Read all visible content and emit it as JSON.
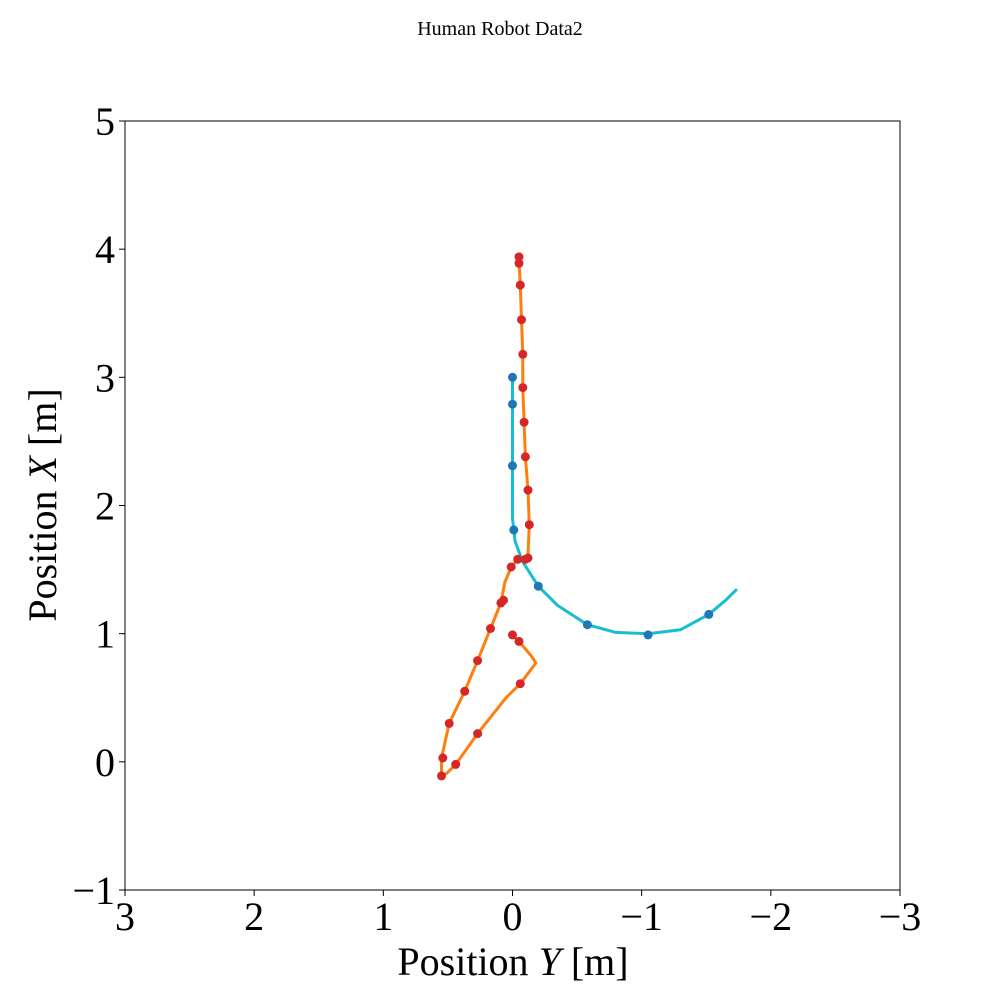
{
  "chart_data": {
    "type": "line",
    "title": "Human Robot Data2",
    "xlabel": {
      "prefix": "Position ",
      "var": "Y",
      "suffix": " [m]"
    },
    "ylabel": {
      "prefix": "Position ",
      "var": "X",
      "suffix": " [m]"
    },
    "xlim": [
      3,
      -3
    ],
    "ylim": [
      -1,
      5
    ],
    "x_inverted": true,
    "grid": false,
    "xticks": [
      3,
      2,
      1,
      0,
      -1,
      -2,
      -3
    ],
    "yticks": [
      -1,
      0,
      1,
      2,
      3,
      4,
      5
    ],
    "xtick_labels": [
      "3",
      "2",
      "1",
      "0",
      "−1",
      "−2",
      "−3"
    ],
    "ytick_labels": [
      "−1",
      "0",
      "1",
      "2",
      "3",
      "4",
      "5"
    ],
    "colors": {
      "robot_line": "#17becf",
      "robot_marker": "#1f77b4",
      "human_line": "#ff7f0e",
      "human_marker": "#d62728"
    },
    "series": [
      {
        "role": "robot",
        "line": [
          [
            0.0,
            3.0
          ],
          [
            0.0,
            2.5
          ],
          [
            0.0,
            2.0
          ],
          [
            0.0,
            1.9
          ],
          [
            -0.02,
            1.72
          ],
          [
            -0.08,
            1.56
          ],
          [
            -0.2,
            1.37
          ],
          [
            -0.35,
            1.22
          ],
          [
            -0.58,
            1.07
          ],
          [
            -0.8,
            1.01
          ],
          [
            -1.05,
            1.0
          ],
          [
            -1.3,
            1.03
          ],
          [
            -1.52,
            1.15
          ],
          [
            -1.65,
            1.26
          ],
          [
            -1.73,
            1.34
          ]
        ],
        "markers": [
          [
            0.0,
            3.0
          ],
          [
            0.0,
            2.79
          ],
          [
            0.0,
            2.31
          ],
          [
            -0.01,
            1.81
          ],
          [
            -0.2,
            1.37
          ],
          [
            -0.58,
            1.07
          ],
          [
            -1.05,
            0.99
          ],
          [
            -1.52,
            1.15
          ]
        ]
      },
      {
        "role": "human",
        "line": [
          [
            -0.05,
            3.95
          ],
          [
            -0.05,
            3.9
          ],
          [
            -0.06,
            3.72
          ],
          [
            -0.07,
            3.45
          ],
          [
            -0.08,
            3.18
          ],
          [
            -0.08,
            2.92
          ],
          [
            -0.09,
            2.65
          ],
          [
            -0.1,
            2.38
          ],
          [
            -0.12,
            2.12
          ],
          [
            -0.13,
            1.85
          ],
          [
            -0.12,
            1.62
          ],
          [
            -0.1,
            1.58
          ],
          [
            -0.04,
            1.58
          ],
          [
            0.01,
            1.52
          ],
          [
            0.06,
            1.4
          ],
          [
            0.09,
            1.24
          ],
          [
            0.17,
            1.04
          ],
          [
            0.27,
            0.79
          ],
          [
            0.37,
            0.55
          ],
          [
            0.49,
            0.3
          ],
          [
            0.55,
            0.03
          ],
          [
            0.55,
            -0.11
          ],
          [
            0.51,
            -0.09
          ],
          [
            0.44,
            -0.02
          ],
          [
            0.27,
            0.22
          ],
          [
            0.05,
            0.5
          ],
          [
            -0.06,
            0.61
          ],
          [
            -0.18,
            0.77
          ],
          [
            -0.15,
            0.82
          ],
          [
            -0.05,
            0.94
          ],
          [
            0.0,
            0.99
          ]
        ],
        "markers": [
          [
            -0.05,
            3.94
          ],
          [
            -0.05,
            3.89
          ],
          [
            -0.06,
            3.72
          ],
          [
            -0.07,
            3.45
          ],
          [
            -0.08,
            3.18
          ],
          [
            -0.08,
            2.92
          ],
          [
            -0.09,
            2.65
          ],
          [
            -0.1,
            2.38
          ],
          [
            -0.12,
            2.12
          ],
          [
            -0.13,
            1.85
          ],
          [
            -0.12,
            1.59
          ],
          [
            -0.1,
            1.58
          ],
          [
            -0.04,
            1.58
          ],
          [
            0.01,
            1.52
          ],
          [
            0.07,
            1.26
          ],
          [
            0.09,
            1.24
          ],
          [
            0.17,
            1.04
          ],
          [
            0.27,
            0.79
          ],
          [
            0.37,
            0.55
          ],
          [
            0.49,
            0.3
          ],
          [
            0.54,
            0.03
          ],
          [
            0.55,
            -0.11
          ],
          [
            0.44,
            -0.02
          ],
          [
            0.27,
            0.22
          ],
          [
            -0.06,
            0.61
          ],
          [
            -0.05,
            0.94
          ],
          [
            0.0,
            0.99
          ]
        ]
      }
    ]
  }
}
